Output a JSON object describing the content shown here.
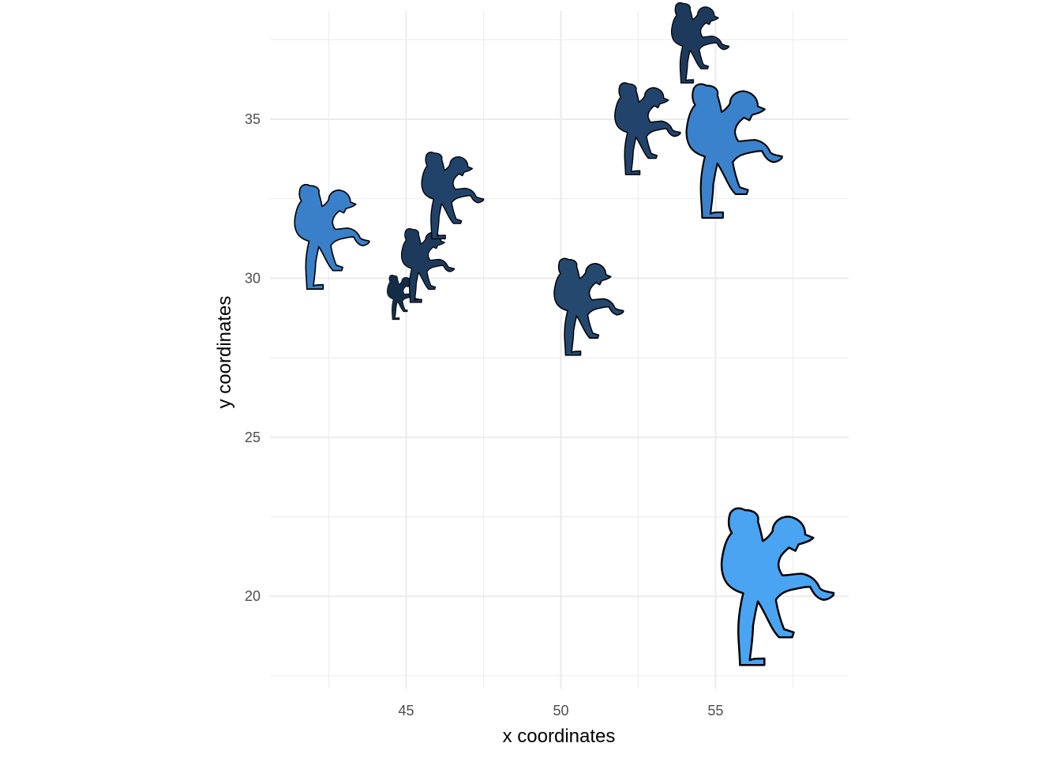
{
  "chart_data": {
    "type": "scatter",
    "title": "",
    "xlabel": "x coordinates",
    "ylabel": "y coordinates",
    "xlim": [
      40.6,
      59.3
    ],
    "ylim": [
      17.1,
      38.4
    ],
    "x_ticks": [
      45,
      50,
      55
    ],
    "y_ticks": [
      20,
      25,
      30,
      35
    ],
    "x_tick_labels": [
      "45",
      "50",
      "55"
    ],
    "y_tick_labels": [
      "20",
      "25",
      "30",
      "35"
    ],
    "x_minor_ticks": [
      42.5,
      47.5,
      52.5,
      57.5
    ],
    "y_minor_ticks": [
      17.5,
      22.5,
      27.5,
      32.5,
      37.5
    ],
    "grid": true,
    "marker_icon": "baseball-pitcher-icon",
    "fill_scale": {
      "low": "#132b43",
      "high": "#56b1f7"
    },
    "points": [
      {
        "x": 42.6,
        "y": 31.3,
        "size": 0.82,
        "color": "#3a80c8"
      },
      {
        "x": 44.9,
        "y": 29.4,
        "size": 0.35,
        "color": "#142d46"
      },
      {
        "x": 45.7,
        "y": 30.4,
        "size": 0.58,
        "color": "#1d3a5c"
      },
      {
        "x": 46.5,
        "y": 32.6,
        "size": 0.68,
        "color": "#21436a"
      },
      {
        "x": 50.9,
        "y": 29.1,
        "size": 0.76,
        "color": "#25486f"
      },
      {
        "x": 52.8,
        "y": 34.7,
        "size": 0.72,
        "color": "#22436b"
      },
      {
        "x": 54.5,
        "y": 37.4,
        "size": 0.63,
        "color": "#1d3a5c"
      },
      {
        "x": 55.6,
        "y": 34.0,
        "size": 1.05,
        "color": "#3a82cb"
      },
      {
        "x": 57.0,
        "y": 20.3,
        "size": 1.23,
        "color": "#4aa4f2"
      }
    ]
  }
}
